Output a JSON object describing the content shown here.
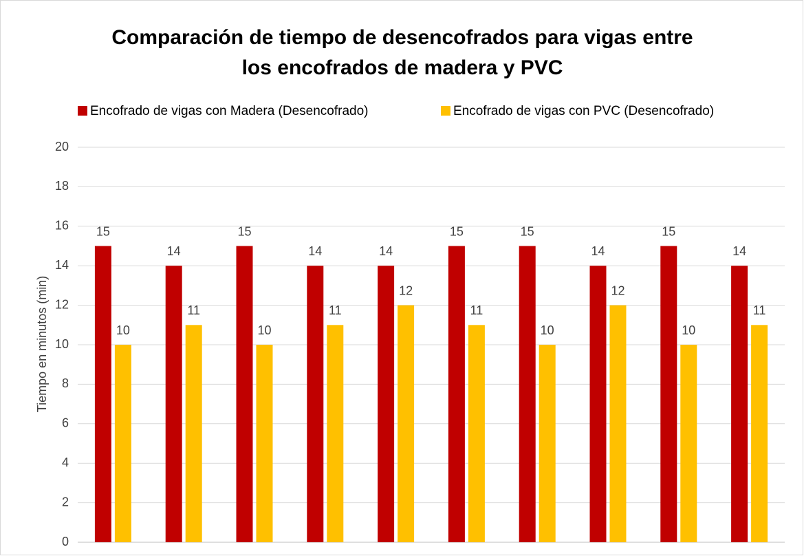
{
  "chart_data": {
    "type": "bar",
    "title": [
      "Comparación de tiempo de desencofrados  para vigas entre",
      "los encofrados de madera y PVC"
    ],
    "ylabel": "Tiempo en minutos (min)",
    "categories": [
      null,
      null,
      null,
      null,
      null,
      null,
      null,
      null,
      null,
      null
    ],
    "series": [
      {
        "name": "Encofrado de vigas con Madera (Desencofrado)",
        "color": "#c00000",
        "values": [
          15,
          14,
          15,
          14,
          14,
          15,
          15,
          14,
          15,
          14
        ]
      },
      {
        "name": "Encofrado de vigas con PVC (Desencofrado)",
        "color": "#ffc000",
        "values": [
          10,
          11,
          10,
          11,
          12,
          11,
          10,
          12,
          10,
          11
        ]
      }
    ],
    "ylim": [
      0,
      20
    ],
    "yticks": [
      0,
      2,
      4,
      6,
      8,
      10,
      12,
      14,
      16,
      18,
      20
    ],
    "grid": true,
    "legend": "top"
  }
}
